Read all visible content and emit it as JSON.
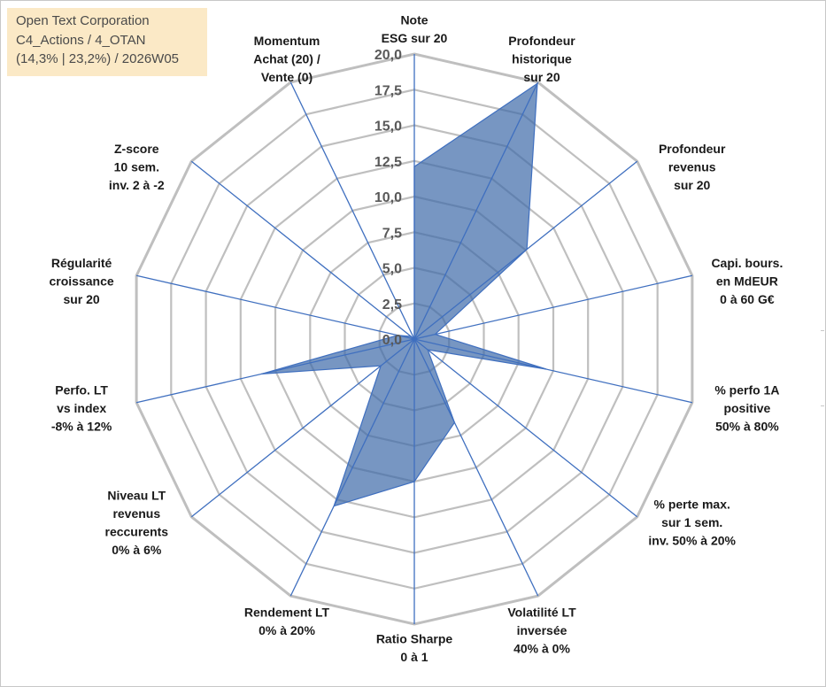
{
  "info": {
    "company": "Open Text Corporation",
    "portfolio": "C4_Actions / 4_OTAN",
    "stats": "(14,3% | 23,2%) / 2026W05"
  },
  "colors": {
    "fill": "#3d6aa8",
    "fill_opacity": 0.7,
    "spoke": "#3f6fbf",
    "grid": "#bfbfbf",
    "info_bg": "#fbe9c6"
  },
  "chart_data": {
    "type": "radar",
    "range": [
      0,
      20
    ],
    "tick_step": 2.5,
    "tick_labels": [
      "0,0",
      "2,5",
      "5,0",
      "7,5",
      "10,0",
      "12,5",
      "15,0",
      "17,5",
      "20,0"
    ],
    "axes": [
      {
        "lines": [
          "Note",
          "ESG sur 20"
        ]
      },
      {
        "lines": [
          "Profondeur",
          "historique",
          "sur 20"
        ]
      },
      {
        "lines": [
          "Profondeur",
          "revenus",
          "sur 20"
        ]
      },
      {
        "lines": [
          "Capi. bours.",
          "en MdEUR",
          "0 à 60 G€"
        ]
      },
      {
        "lines": [
          "% perfo 1A",
          "positive",
          "50% à 80%"
        ]
      },
      {
        "lines": [
          "% perte max.",
          "sur 1 sem.",
          "inv. 50% à 20%"
        ]
      },
      {
        "lines": [
          "Volatilité LT",
          "inversée",
          "40% à 0%"
        ]
      },
      {
        "lines": [
          "Ratio Sharpe",
          "0 à 1"
        ]
      },
      {
        "lines": [
          "Rendement LT",
          "0% à 20%"
        ]
      },
      {
        "lines": [
          "Niveau LT",
          "revenus",
          "reccurents",
          "0% à 6%"
        ]
      },
      {
        "lines": [
          "Perfo. LT",
          "vs index",
          "-8% à 12%"
        ]
      },
      {
        "lines": [
          "Régularité",
          "croissance",
          "sur 20"
        ]
      },
      {
        "lines": [
          "Z-score",
          "10 sem.",
          "inv. 2 à -2"
        ]
      },
      {
        "lines": [
          "Momentum",
          "Achat (20) /",
          "Vente (0)"
        ]
      }
    ],
    "series": [
      {
        "values": [
          12.1,
          19.9,
          10.1,
          1.5,
          9.5,
          1.2,
          6.5,
          10.0,
          13.0,
          3.0,
          11.0,
          1.2,
          0.3,
          0.0
        ]
      }
    ]
  }
}
